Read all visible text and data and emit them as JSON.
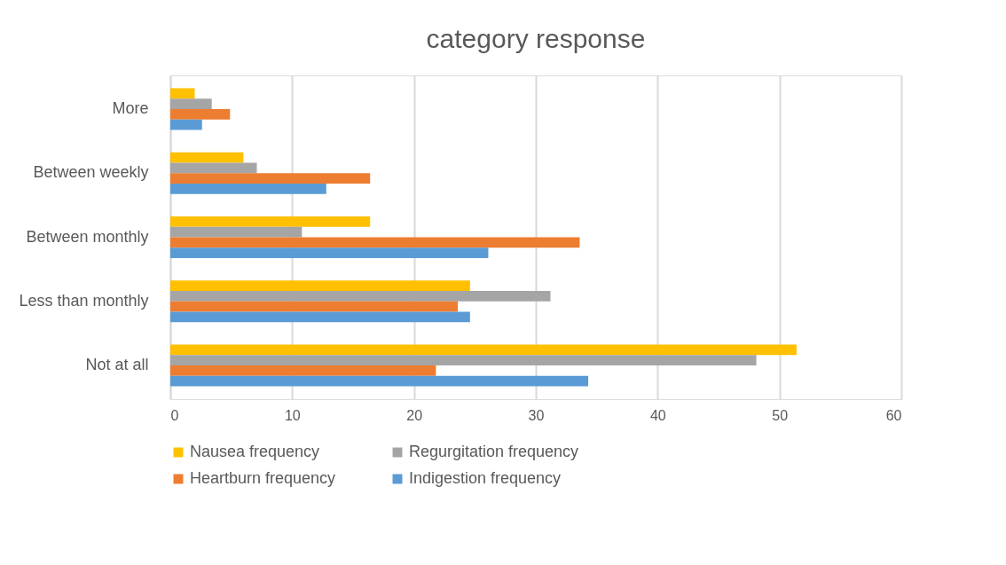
{
  "chart_data": {
    "type": "bar",
    "orientation": "horizontal",
    "title": "category response",
    "categories": [
      "More",
      "Between weekly",
      "Between monthly",
      "Less than monthly",
      "Not at all"
    ],
    "series": [
      {
        "name": "Nausea frequency",
        "color": "#ffc000",
        "values": [
          2.0,
          6.0,
          16.4,
          24.6,
          51.4
        ]
      },
      {
        "name": "Regurgitation frequency",
        "color": "#a5a5a5",
        "values": [
          3.4,
          7.1,
          10.8,
          31.2,
          48.1
        ]
      },
      {
        "name": "Heartburn frequency",
        "color": "#ed7d31",
        "values": [
          4.9,
          16.4,
          33.6,
          23.6,
          21.8
        ]
      },
      {
        "name": "Indigestion frequency",
        "color": "#5b9bd5",
        "values": [
          2.6,
          12.8,
          26.1,
          24.6,
          34.3
        ]
      }
    ],
    "xlim": [
      0,
      60
    ],
    "xticks": [
      0,
      10,
      20,
      30,
      40,
      50,
      60
    ],
    "grid": "x",
    "legend": "bottom"
  }
}
